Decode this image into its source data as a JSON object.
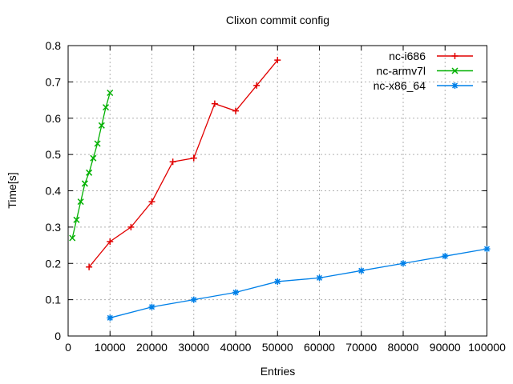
{
  "chart_data": {
    "type": "line",
    "title": "Clixon commit config",
    "xlabel": "Entries",
    "ylabel": "Time[s]",
    "xlim": [
      0,
      100000
    ],
    "ylim": [
      0,
      0.8
    ],
    "grid": true,
    "legend_position": "top-right-inside",
    "x_ticks": {
      "values": [
        0,
        10000,
        20000,
        30000,
        40000,
        50000,
        60000,
        70000,
        80000,
        90000,
        100000
      ],
      "labels": [
        "0",
        "10000",
        "20000",
        "30000",
        "40000",
        "50000",
        "60000",
        "70000",
        "80000",
        "90000",
        "100000"
      ]
    },
    "y_ticks": {
      "values": [
        0,
        0.1,
        0.2,
        0.3,
        0.4,
        0.5,
        0.6,
        0.7,
        0.8
      ],
      "labels": [
        "0",
        "0.1",
        "0.2",
        "0.3",
        "0.4",
        "0.5",
        "0.6",
        "0.7",
        "0.8"
      ]
    },
    "series": [
      {
        "name": "nc-i686",
        "color": "#e10000",
        "marker": "plus",
        "x": [
          5000,
          10000,
          15000,
          20000,
          25000,
          30000,
          35000,
          40000,
          45000,
          50000
        ],
        "y": [
          0.19,
          0.26,
          0.3,
          0.37,
          0.48,
          0.49,
          0.64,
          0.62,
          0.69,
          0.76
        ]
      },
      {
        "name": "nc-armv7l",
        "color": "#00b000",
        "marker": "cross",
        "x": [
          1000,
          2000,
          3000,
          4000,
          5000,
          6000,
          7000,
          8000,
          9000,
          10000
        ],
        "y": [
          0.27,
          0.32,
          0.37,
          0.42,
          0.45,
          0.49,
          0.53,
          0.58,
          0.63,
          0.67
        ]
      },
      {
        "name": "nc-x86_64",
        "color": "#0080e8",
        "marker": "asterisk",
        "x": [
          10000,
          20000,
          30000,
          40000,
          50000,
          60000,
          70000,
          80000,
          90000,
          100000
        ],
        "y": [
          0.05,
          0.08,
          0.1,
          0.12,
          0.15,
          0.16,
          0.18,
          0.2,
          0.22,
          0.24
        ]
      }
    ],
    "colors": {
      "background": "#ffffff",
      "axis": "#000000",
      "grid": "#b0b0b0",
      "text": "#000000"
    }
  }
}
